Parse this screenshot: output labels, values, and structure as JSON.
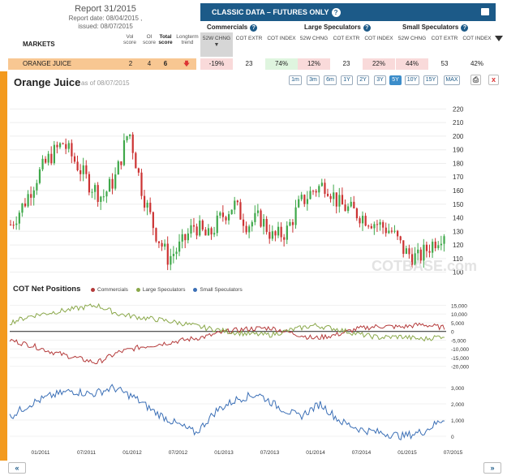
{
  "report": {
    "title": "Report 31/2015",
    "report_date": "Report date: 08/04/2015 ,",
    "issued": "issued: 08/07/2015"
  },
  "markets_header": "MARKETS",
  "col_headers": {
    "vol": "Vol score",
    "oi": "OI score",
    "total": "Total score",
    "trend": "Longterm trend"
  },
  "classic_data": {
    "title": "CLASSIC DATA – FUTURES ONLY",
    "groups": [
      "Commercials",
      "Large Speculators",
      "Small Speculators"
    ],
    "sub_headers": [
      "52W CHNG",
      "COT EXTR",
      "COT INDEX"
    ]
  },
  "market_row": {
    "name": "ORANGE JUICE",
    "vol": "2",
    "oi": "4",
    "total": "6",
    "values": [
      "-19%",
      "23",
      "74%",
      "12%",
      "23",
      "22%",
      "44%",
      "53",
      "42%"
    ]
  },
  "chart_header": {
    "title": "Orange Juice",
    "as_of": "as of 08/07/2015",
    "ranges": [
      "1m",
      "3m",
      "6m",
      "1Y",
      "2Y",
      "3Y",
      "5Y",
      "10Y",
      "15Y",
      "MAX"
    ],
    "active": "5Y"
  },
  "watermark": "COTBASE.com",
  "cot_title": "COT Net Positions",
  "legend": [
    "Commercials",
    "Large Speculators",
    "Small Speculators"
  ],
  "colors": {
    "commercials": "#b43a3a",
    "large": "#8aa84a",
    "small": "#3b6fb6",
    "up": "#3fa84a",
    "down": "#cc3333",
    "accent": "#f39a1e",
    "header": "#1c5a88"
  },
  "chart_data": [
    {
      "type": "candlestick",
      "title": "Orange Juice",
      "ylim": [
        95,
        225
      ],
      "yticks": [
        100,
        110,
        120,
        130,
        140,
        150,
        160,
        170,
        180,
        190,
        200,
        210,
        220
      ],
      "x_ticks": [
        "01/2011",
        "07/2011",
        "01/2012",
        "07/2012",
        "01/2013",
        "07/2013",
        "01/2014",
        "07/2014",
        "01/2015",
        "07/2015"
      ],
      "weekly_close_anchors": [
        135,
        150,
        170,
        185,
        195,
        180,
        165,
        155,
        170,
        205,
        160,
        130,
        110,
        120,
        135,
        125,
        140,
        150,
        135,
        140,
        125,
        130,
        150,
        160,
        165,
        150,
        145,
        140,
        135,
        130,
        115,
        110,
        120,
        130
      ]
    },
    {
      "type": "line",
      "title": "COT Net Positions",
      "ylim": [
        -22000,
        18000
      ],
      "yticks": [
        15000,
        10000,
        5000,
        0,
        -5000,
        -10000,
        -15000,
        -20000
      ],
      "series": [
        {
          "name": "Commercials",
          "values": [
            -5000,
            -8000,
            -12000,
            -15000,
            -18000,
            -12000,
            -9000,
            -7000,
            -5000,
            -3000,
            0,
            1500,
            2000,
            -1000,
            -4000,
            -2000,
            1500,
            3000,
            2500,
            4000,
            2000
          ]
        },
        {
          "name": "Large Speculators",
          "values": [
            5000,
            9000,
            11000,
            13000,
            15000,
            10000,
            8000,
            6500,
            4500,
            2000,
            0,
            -1500,
            -2000,
            1000,
            3500,
            1500,
            -1500,
            -3500,
            -3000,
            -4500,
            -2500
          ]
        }
      ]
    },
    {
      "type": "line",
      "title": "Small Speculators",
      "ylim": [
        -200,
        3600
      ],
      "yticks": [
        3000,
        2000,
        1000,
        0
      ],
      "series": [
        {
          "name": "Small Speculators",
          "values": [
            1200,
            2000,
            2500,
            2800,
            2600,
            3000,
            2400,
            1500,
            800,
            200,
            1600,
            2300,
            2600,
            1800,
            1200,
            2000,
            900,
            400,
            200,
            0,
            300,
            1100
          ]
        }
      ]
    }
  ]
}
